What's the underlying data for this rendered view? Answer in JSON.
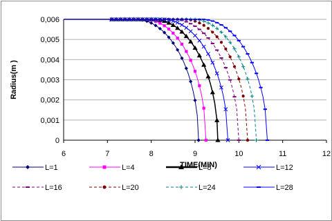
{
  "chart_data": {
    "type": "line",
    "xlabel": "TIME(MIN)",
    "ylabel": "Radius(m )",
    "xlim": [
      6,
      12
    ],
    "ylim": [
      0,
      0.006
    ],
    "x_ticks": [
      "6",
      "7",
      "8",
      "9",
      "10",
      "11",
      "12"
    ],
    "y_ticks": [
      "0",
      "0,001",
      "0,002",
      "0,003",
      "0,004",
      "0,005",
      "0,006"
    ],
    "grid": "horizontal",
    "legend_position": "bottom",
    "series": [
      {
        "name": "L=1",
        "color": "#000080",
        "line_style": "solid",
        "marker": "diamond",
        "t0": 7.65,
        "x_end": 9.08
      },
      {
        "name": "L=4",
        "color": "#ff00ff",
        "line_style": "solid",
        "marker": "square",
        "t0": 7.85,
        "x_end": 9.25
      },
      {
        "name": "L=8",
        "color": "#000000",
        "line_style": "solid",
        "marker": "triangle",
        "t0": 8.05,
        "x_end": 9.52
      },
      {
        "name": "L=12",
        "color": "#0000ff",
        "line_style": "solid",
        "marker": "x",
        "t0": 8.25,
        "x_end": 9.75
      },
      {
        "name": "L=16",
        "color": "#800080",
        "line_style": "dashed",
        "marker": "dash",
        "t0": 8.5,
        "x_end": 10.0
      },
      {
        "name": "L=20",
        "color": "#800000",
        "line_style": "dashed",
        "marker": "circle",
        "t0": 8.75,
        "x_end": 10.2
      },
      {
        "name": "L=24",
        "color": "#008080",
        "line_style": "dashed",
        "marker": "plus",
        "t0": 8.95,
        "x_end": 10.4
      },
      {
        "name": "L=28",
        "color": "#0000ff",
        "line_style": "solid",
        "marker": "bar",
        "t0": 9.15,
        "x_end": 10.65
      }
    ]
  }
}
